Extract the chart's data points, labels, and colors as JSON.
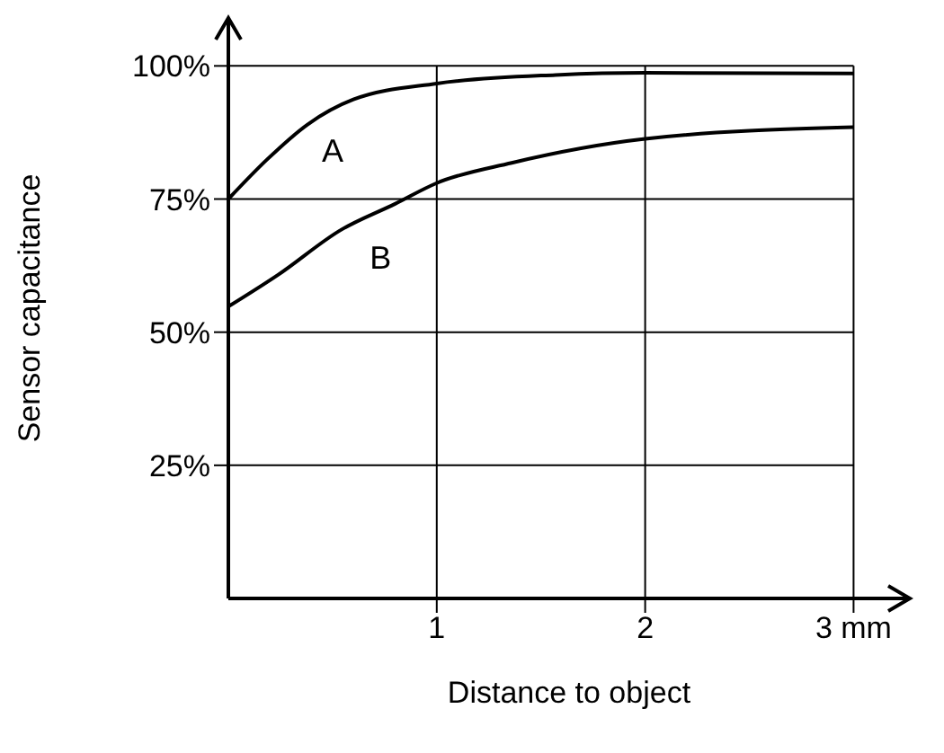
{
  "chart_data": {
    "type": "line",
    "xlabel": "Distance to object",
    "ylabel": "Sensor capacitance",
    "xlim": [
      0,
      3.27
    ],
    "ylim": [
      0,
      109
    ],
    "xticks": [
      1,
      2,
      {
        "value": 3,
        "label": "3 mm"
      }
    ],
    "yticks": [
      {
        "value": 25,
        "label": "25%"
      },
      {
        "value": 50,
        "label": "50%"
      },
      {
        "value": 75,
        "label": "75%"
      },
      {
        "value": 100,
        "label": "100%"
      }
    ],
    "grid": true,
    "marker": "none",
    "line_style": "solid",
    "series": [
      {
        "name": "A",
        "color": "#000000",
        "x": [
          0,
          0.185,
          0.38,
          0.6,
          1,
          1.57,
          2,
          3
        ],
        "values": [
          75,
          82.4,
          89,
          93.7,
          96.7,
          98.3,
          98.7,
          98.6
        ]
      },
      {
        "name": "B",
        "color": "#000000",
        "x": [
          0,
          0.24,
          0.54,
          0.8,
          1,
          1.36,
          2,
          3
        ],
        "values": [
          54.8,
          60.8,
          69.2,
          74.1,
          78,
          81.8,
          86.3,
          88.5
        ]
      }
    ]
  }
}
